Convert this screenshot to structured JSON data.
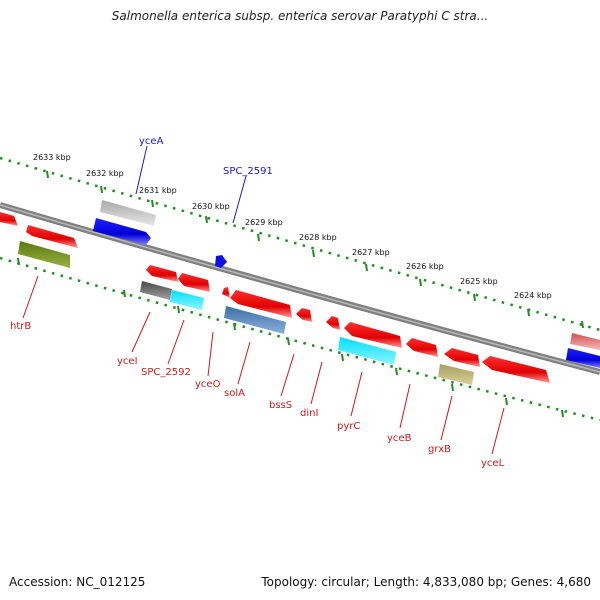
{
  "title": "Salmonella enterica subsp. enterica serovar Paratyphi C stra...",
  "footer": {
    "accession": "Accession: NC_012125",
    "summary": "Topology: circular; Length: 4,833,080 bp; Genes: 4,680"
  },
  "scale_labels": [
    "2633 kbp",
    "2632 kbp",
    "2631 kbp",
    "2630 kbp",
    "2629 kbp",
    "2628 kbp",
    "2627 kbp",
    "2626 kbp",
    "2625 kbp",
    "2624 kbp"
  ],
  "genes_top": [
    {
      "name": "yceA",
      "color": "#1a1acc"
    },
    {
      "name": "SPC_2591",
      "color": "#1a1acc"
    }
  ],
  "genes_bottom": [
    {
      "name": "htrB",
      "color": "#cc1a1a"
    },
    {
      "name": "yceI",
      "color": "#cc1a1a"
    },
    {
      "name": "SPC_2592",
      "color": "#cc1a1a"
    },
    {
      "name": "yceO",
      "color": "#cc1a1a"
    },
    {
      "name": "solA",
      "color": "#cc1a1a"
    },
    {
      "name": "bssS",
      "color": "#cc1a1a"
    },
    {
      "name": "dinI",
      "color": "#cc1a1a"
    },
    {
      "name": "pyrC",
      "color": "#cc1a1a"
    },
    {
      "name": "yceB",
      "color": "#cc1a1a"
    },
    {
      "name": "grxB",
      "color": "#cc1a1a"
    },
    {
      "name": "yceL",
      "color": "#cc1a1a"
    }
  ],
  "colors": {
    "backbone": "#808080",
    "ticks": "#228b22",
    "forward_gene": "#0000ee",
    "reverse_gene": "#ee0000"
  }
}
